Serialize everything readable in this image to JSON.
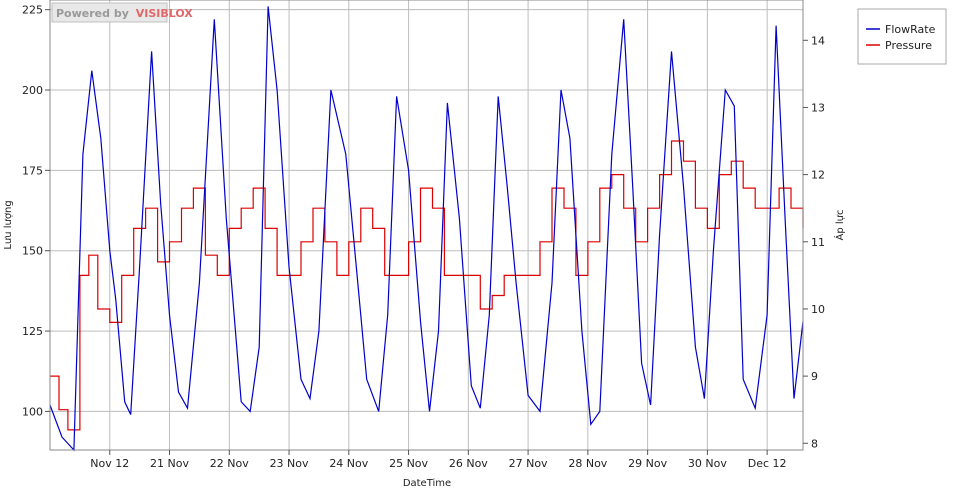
{
  "watermark": {
    "prefix": "Powered by",
    "brand": "VISIBLOX"
  },
  "chart_data": {
    "type": "line",
    "xlabel": "DateTime",
    "ylabel_left": "Lưu lượng",
    "ylabel_right": "Áp lực",
    "x_tick_labels": [
      "Nov 12",
      "21 Nov",
      "22 Nov",
      "23 Nov",
      "24 Nov",
      "25 Nov",
      "26 Nov",
      "27 Nov",
      "28 Nov",
      "29 Nov",
      "30 Nov",
      "Dec 12"
    ],
    "y_left_ticks": [
      "100",
      "125",
      "150",
      "175",
      "200",
      "225"
    ],
    "y_right_ticks": [
      "8",
      "9",
      "10",
      "11",
      "12",
      "13",
      "14"
    ],
    "ylim_left": [
      88,
      228
    ],
    "ylim_right": [
      7.9,
      14.6
    ],
    "x_range_days": [
      0,
      12.6
    ],
    "grid": true,
    "legend_position": "top-right",
    "colors": {
      "flowrate": "#0000cc",
      "pressure": "#dd0000"
    },
    "series": [
      {
        "name": "FlowRate",
        "axis": "left",
        "x": [
          0.0,
          0.2,
          0.4,
          0.55,
          0.7,
          0.85,
          1.0,
          1.1,
          1.25,
          1.35,
          1.5,
          1.7,
          1.85,
          2.0,
          2.15,
          2.3,
          2.5,
          2.75,
          2.95,
          3.2,
          3.35,
          3.5,
          3.65,
          3.8,
          4.0,
          4.2,
          4.35,
          4.5,
          4.7,
          4.95,
          5.15,
          5.3,
          5.5,
          5.65,
          5.8,
          6.0,
          6.2,
          6.35,
          6.5,
          6.65,
          6.85,
          7.05,
          7.2,
          7.35,
          7.5,
          7.65,
          7.8,
          8.0,
          8.2,
          8.4,
          8.55,
          8.7,
          8.9,
          9.05,
          9.2,
          9.4,
          9.6,
          9.75,
          9.9,
          10.05,
          10.2,
          10.4,
          10.6,
          10.8,
          10.95,
          11.1,
          11.3,
          11.45,
          11.6,
          11.8,
          12.0,
          12.15,
          12.3,
          12.45,
          12.6
        ],
        "y": [
          102,
          92,
          88,
          180,
          206,
          185,
          150,
          135,
          103,
          99,
          145,
          212,
          165,
          130,
          106,
          101,
          140,
          222,
          160,
          103,
          100,
          120,
          226,
          200,
          145,
          110,
          104,
          125,
          200,
          180,
          140,
          110,
          100,
          130,
          198,
          175,
          128,
          100,
          125,
          196,
          160,
          108,
          101,
          130,
          198,
          170,
          140,
          105,
          100,
          140,
          200,
          185,
          125,
          96,
          100,
          180,
          222,
          170,
          115,
          102,
          155,
          212,
          170,
          120,
          104,
          150,
          200,
          195,
          110,
          101,
          130,
          220,
          160,
          104,
          128
        ]
      },
      {
        "name": "Pressure",
        "axis": "right",
        "x": [
          0.0,
          0.15,
          0.3,
          0.5,
          0.65,
          0.8,
          1.0,
          1.2,
          1.4,
          1.6,
          1.8,
          2.0,
          2.2,
          2.4,
          2.6,
          2.8,
          3.0,
          3.2,
          3.4,
          3.6,
          3.8,
          4.0,
          4.2,
          4.4,
          4.6,
          4.8,
          5.0,
          5.2,
          5.4,
          5.6,
          5.8,
          6.0,
          6.2,
          6.4,
          6.6,
          6.8,
          7.0,
          7.2,
          7.4,
          7.6,
          7.8,
          8.0,
          8.2,
          8.4,
          8.6,
          8.8,
          9.0,
          9.2,
          9.4,
          9.6,
          9.8,
          10.0,
          10.2,
          10.4,
          10.6,
          10.8,
          11.0,
          11.2,
          11.4,
          11.6,
          11.8,
          12.0,
          12.2,
          12.4,
          12.6
        ],
        "y": [
          9.0,
          8.5,
          8.2,
          10.5,
          10.8,
          10.0,
          9.8,
          10.5,
          11.2,
          11.5,
          10.7,
          11.0,
          11.5,
          11.8,
          10.8,
          10.5,
          11.2,
          11.5,
          11.8,
          11.2,
          10.5,
          10.5,
          11.0,
          11.5,
          11.0,
          10.5,
          11.0,
          11.5,
          11.2,
          10.5,
          10.5,
          11.0,
          11.8,
          11.5,
          10.5,
          10.5,
          10.5,
          10.0,
          10.2,
          10.5,
          10.5,
          10.5,
          11.0,
          11.8,
          11.5,
          10.5,
          11.0,
          11.8,
          12.0,
          11.5,
          11.0,
          11.5,
          12.0,
          12.5,
          12.2,
          11.5,
          11.2,
          12.0,
          12.2,
          11.8,
          11.5,
          11.5,
          11.8,
          11.5,
          11.2
        ]
      }
    ]
  }
}
